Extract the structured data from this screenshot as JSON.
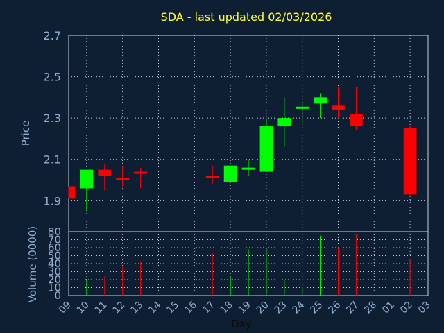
{
  "chart_data": {
    "type": "candlestick",
    "title": "SDA - last updated 02/03/2026",
    "xlabel": "Day",
    "ylabel_price": "Price",
    "ylabel_volume": "Volume (0000)",
    "price_ylim": [
      1.75,
      2.7
    ],
    "price_ticks": [
      "1.9",
      "2.1",
      "2.3",
      "2.5",
      "2.7"
    ],
    "volume_ylim": [
      0,
      80
    ],
    "volume_ticks": [
      "0",
      "10",
      "20",
      "30",
      "40",
      "50",
      "60",
      "70",
      "80"
    ],
    "x_ticks": [
      "09",
      "10",
      "11",
      "12",
      "13",
      "14",
      "15",
      "16",
      "17",
      "18",
      "19",
      "20",
      "23",
      "24",
      "25",
      "26",
      "27",
      "28",
      "01",
      "02",
      "03"
    ],
    "grid": true,
    "up_color": "#00ff00",
    "down_color": "#ff0000",
    "candles": [
      {
        "x": "09",
        "open": 1.97,
        "high": 1.97,
        "low": 1.91,
        "close": 1.91,
        "volume": 0
      },
      {
        "x": "10",
        "open": 1.96,
        "high": 2.05,
        "low": 1.85,
        "close": 2.05,
        "volume": 20
      },
      {
        "x": "11",
        "open": 2.05,
        "high": 2.08,
        "low": 1.95,
        "close": 2.02,
        "volume": 24
      },
      {
        "x": "12",
        "open": 2.01,
        "high": 2.07,
        "low": 1.97,
        "close": 2.0,
        "volume": 36
      },
      {
        "x": "13",
        "open": 2.04,
        "high": 2.06,
        "low": 1.96,
        "close": 2.03,
        "volume": 43
      },
      {
        "x": "17",
        "open": 2.02,
        "high": 2.07,
        "low": 1.98,
        "close": 2.01,
        "volume": 54
      },
      {
        "x": "18",
        "open": 1.99,
        "high": 2.07,
        "low": 1.99,
        "close": 2.07,
        "volume": 24
      },
      {
        "x": "19",
        "open": 2.05,
        "high": 2.1,
        "low": 2.02,
        "close": 2.06,
        "volume": 58
      },
      {
        "x": "20",
        "open": 2.04,
        "high": 2.3,
        "low": 2.04,
        "close": 2.26,
        "volume": 58
      },
      {
        "x": "23",
        "open": 2.26,
        "high": 2.4,
        "low": 2.16,
        "close": 2.3,
        "volume": 20
      },
      {
        "x": "24",
        "open": 2.35,
        "high": 2.38,
        "low": 2.28,
        "close": 2.35,
        "volume": 10
      },
      {
        "x": "25",
        "open": 2.37,
        "high": 2.42,
        "low": 2.3,
        "close": 2.4,
        "volume": 75
      },
      {
        "x": "26",
        "open": 2.36,
        "high": 2.45,
        "low": 2.3,
        "close": 2.34,
        "volume": 60
      },
      {
        "x": "27",
        "open": 2.32,
        "high": 2.45,
        "low": 2.24,
        "close": 2.26,
        "volume": 77
      },
      {
        "x": "02",
        "open": 2.25,
        "high": 2.26,
        "low": 1.92,
        "close": 1.93,
        "volume": 46
      }
    ]
  }
}
